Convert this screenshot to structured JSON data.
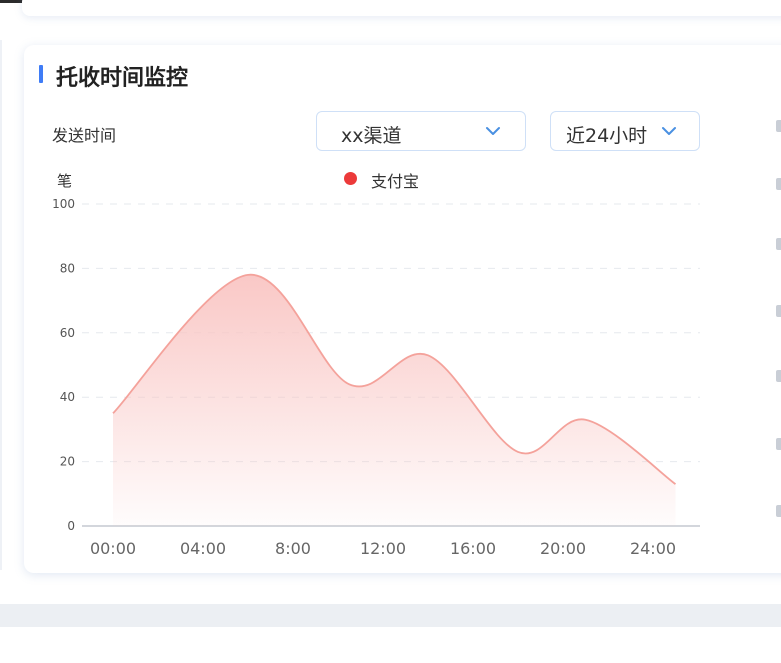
{
  "card": {
    "title": "托收时间监控",
    "send_time_label": "发送时间",
    "unit_label": "笔"
  },
  "filters": {
    "channel": {
      "selected": "xx渠道"
    },
    "time_range": {
      "selected": "近24小时"
    }
  },
  "colors": {
    "accent": "#3f7cf6",
    "series": "#ec3a3a",
    "series_line": "#f4a29b",
    "series_fill": "#f9c5c3"
  },
  "chart_data": {
    "type": "area",
    "smooth": true,
    "x": [
      "00:00",
      "04:00",
      "8:00",
      "12:00",
      "16:00",
      "20:00",
      "24:00"
    ],
    "y_ticks": [
      0,
      20,
      40,
      60,
      80,
      100
    ],
    "ylim": [
      0,
      100
    ],
    "ylabel": "笔",
    "grid": true,
    "legend_position": "top-center",
    "series": [
      {
        "name": "支付宝",
        "points": [
          {
            "t": "00:00",
            "v": 35
          },
          {
            "t": "06:00",
            "v": 78
          },
          {
            "t": "10:30",
            "v": 44
          },
          {
            "t": "14:00",
            "v": 53
          },
          {
            "t": "18:00",
            "v": 23
          },
          {
            "t": "21:00",
            "v": 33
          },
          {
            "t": "25:00",
            "v": 13
          }
        ]
      }
    ]
  }
}
